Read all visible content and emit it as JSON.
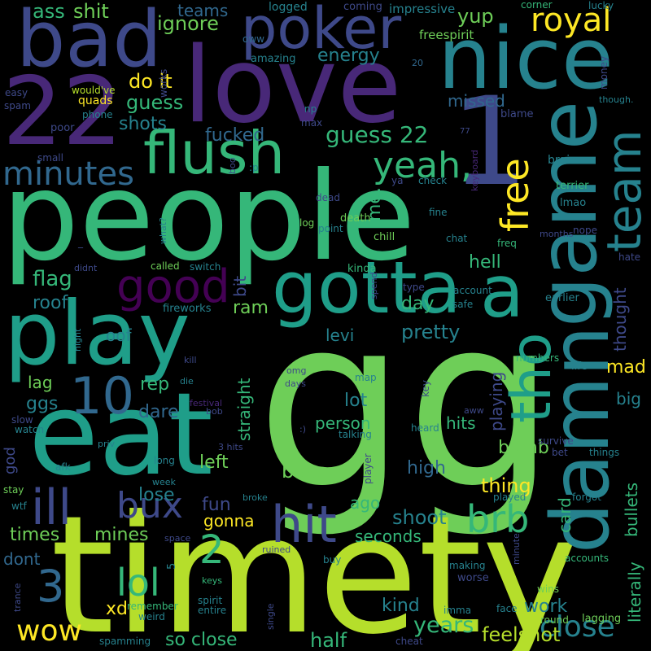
{
  "palette": {
    "background": "#000000",
    "yellow": "#fde725",
    "lime": "#b5de2b",
    "green": "#6ece58",
    "seagreen": "#35b779",
    "teal": "#1f9e89",
    "steel": "#26828e",
    "blue": "#31688e",
    "slate": "#3e4989",
    "indigo": "#482878",
    "purple": "#440154"
  },
  "words": [
    {
      "text": "gg",
      "c": "#6ece58"
    },
    {
      "text": "timety",
      "c": "#b5de2b"
    },
    {
      "text": "people",
      "c": "#35b779"
    },
    {
      "text": "love",
      "c": "#482878"
    },
    {
      "text": "eat",
      "c": "#1f9e89"
    },
    {
      "text": "play",
      "c": "#1f9e89"
    },
    {
      "text": "damn",
      "c": "#26828e"
    },
    {
      "text": "game",
      "c": "#26828e"
    },
    {
      "text": "22",
      "c": "#482878"
    },
    {
      "text": "bad",
      "c": "#3e4989"
    },
    {
      "text": "nice",
      "c": "#26828e"
    },
    {
      "text": "poker",
      "c": "#3e4989"
    },
    {
      "text": "1",
      "c": "#3e4989"
    },
    {
      "text": "gotta",
      "c": "#1f9e89"
    },
    {
      "text": "flush",
      "c": "#35b779"
    },
    {
      "text": "tho",
      "c": "#1f9e89"
    },
    {
      "text": "a",
      "c": "#1f9e89"
    },
    {
      "text": "good",
      "c": "#440154"
    },
    {
      "text": "hit",
      "c": "#3e4989"
    },
    {
      "text": "ill",
      "c": "#3e4989"
    },
    {
      "text": "team",
      "c": "#26828e"
    },
    {
      "text": "free",
      "c": "#fde725"
    },
    {
      "text": "10",
      "c": "#31688e"
    },
    {
      "text": "minutes",
      "c": "#31688e"
    },
    {
      "text": "royal",
      "c": "#fde725"
    },
    {
      "text": "yeah,",
      "c": "#35b779"
    },
    {
      "text": "brb",
      "c": "#35b779"
    },
    {
      "text": "close",
      "c": "#26828e"
    },
    {
      "text": "bux",
      "c": "#3e4989"
    },
    {
      "text": "3",
      "c": "#31688e"
    },
    {
      "text": "2",
      "c": "#35b779"
    },
    {
      "text": "lol",
      "c": "#35b779"
    },
    {
      "text": "wow",
      "c": "#fde725"
    },
    {
      "text": "years",
      "c": "#35b779"
    },
    {
      "text": "guess 22",
      "c": "#35b779"
    },
    {
      "text": "thought",
      "c": "#3e4989"
    },
    {
      "text": "ass",
      "c": "#35b779"
    },
    {
      "text": "shit",
      "c": "#6ece58"
    },
    {
      "text": "teams",
      "c": "#31688e"
    },
    {
      "text": "ignore",
      "c": "#6ece58"
    },
    {
      "text": "yup",
      "c": "#6ece58"
    },
    {
      "text": "energy",
      "c": "#26828e"
    },
    {
      "text": "do it",
      "c": "#fde725"
    },
    {
      "text": "guess",
      "c": "#35b779"
    },
    {
      "text": "missed",
      "c": "#31688e"
    },
    {
      "text": "shots",
      "c": "#26828e"
    },
    {
      "text": "fucked",
      "c": "#31688e"
    },
    {
      "text": "me.",
      "c": "#35b779"
    },
    {
      "text": "flag",
      "c": "#35b779"
    },
    {
      "text": "hell",
      "c": "#35b779"
    },
    {
      "text": "roof",
      "c": "#26828e"
    },
    {
      "text": "ram",
      "c": "#6ece58"
    },
    {
      "text": "day",
      "c": "#35b779"
    },
    {
      "text": "bit",
      "c": "#3e4989"
    },
    {
      "text": "pretty",
      "c": "#26828e"
    },
    {
      "text": "levi",
      "c": "#26828e"
    },
    {
      "text": "oof",
      "c": "#26828e"
    },
    {
      "text": "rep",
      "c": "#35b779"
    },
    {
      "text": "mad",
      "c": "#fde725"
    },
    {
      "text": "playing",
      "c": "#3e4989"
    },
    {
      "text": "lag",
      "c": "#6ece58"
    },
    {
      "text": "straight",
      "c": "#35b779"
    },
    {
      "text": "lot",
      "c": "#26828e"
    },
    {
      "text": "dare",
      "c": "#31688e"
    },
    {
      "text": "ggs",
      "c": "#26828e"
    },
    {
      "text": "person",
      "c": "#35b779"
    },
    {
      "text": "hits",
      "c": "#35b779"
    },
    {
      "text": "big",
      "c": "#26828e"
    },
    {
      "text": "left",
      "c": "#6ece58"
    },
    {
      "text": "base",
      "c": "#6ece58"
    },
    {
      "text": "bomb",
      "c": "#6ece58"
    },
    {
      "text": "high",
      "c": "#31688e"
    },
    {
      "text": "thing",
      "c": "#fde725"
    },
    {
      "text": "lose",
      "c": "#26828e"
    },
    {
      "text": "fun",
      "c": "#3e4989"
    },
    {
      "text": "ago",
      "c": "#35b779"
    },
    {
      "text": "shoot",
      "c": "#26828e"
    },
    {
      "text": "card",
      "c": "#35b779"
    },
    {
      "text": "bullets",
      "c": "#35b779"
    },
    {
      "text": "literally",
      "c": "#35b779"
    },
    {
      "text": "gonna",
      "c": "#fde725"
    },
    {
      "text": "times",
      "c": "#6ece58"
    },
    {
      "text": "mines",
      "c": "#6ece58"
    },
    {
      "text": "seconds",
      "c": "#35b779"
    },
    {
      "text": "dont",
      "c": "#31688e"
    },
    {
      "text": "kind",
      "c": "#26828e"
    },
    {
      "text": "work",
      "c": "#26828e"
    },
    {
      "text": "xd",
      "c": "#fde725"
    },
    {
      "text": "so close",
      "c": "#35b779"
    },
    {
      "text": "half",
      "c": "#35b779"
    },
    {
      "text": "feelshot",
      "c": "#b5de2b"
    },
    {
      "text": "god",
      "c": "#3e4989"
    },
    {
      "text": "logged",
      "c": "#26828e"
    },
    {
      "text": "coming",
      "c": "#3e4989"
    },
    {
      "text": "impressive",
      "c": "#26828e"
    },
    {
      "text": "corner",
      "c": "#35b779"
    },
    {
      "text": "lucky",
      "c": "#26828e"
    },
    {
      "text": "oww",
      "c": "#31688e"
    },
    {
      "text": "freespirit",
      "c": "#6ece58"
    },
    {
      "text": "amazing",
      "c": "#26828e"
    },
    {
      "text": "20",
      "c": "#31688e"
    },
    {
      "text": "money",
      "c": "#3e4989"
    },
    {
      "text": "works",
      "c": "#3e4989"
    },
    {
      "text": "easy",
      "c": "#3e4989"
    },
    {
      "text": "would've",
      "c": "#b5de2b"
    },
    {
      "text": "quads",
      "c": "#fde725"
    },
    {
      "text": "spam",
      "c": "#3e4989"
    },
    {
      "text": "phone",
      "c": "#26828e"
    },
    {
      "text": "np",
      "c": "#26828e"
    },
    {
      "text": "though.",
      "c": "#26828e"
    },
    {
      "text": "poor",
      "c": "#3e4989"
    },
    {
      "text": "max",
      "c": "#3e4989"
    },
    {
      "text": "77",
      "c": "#3e4989"
    },
    {
      "text": "blame",
      "c": "#3e4989"
    },
    {
      "text": "small",
      "c": "#3e4989"
    },
    {
      "text": "boo",
      "c": "#3e4989"
    },
    {
      "text": ":p",
      "c": "#26828e"
    },
    {
      "text": "ya",
      "c": "#3e4989"
    },
    {
      "text": "check",
      "c": "#26828e"
    },
    {
      "text": "keyboard",
      "c": "#482878"
    },
    {
      "text": "brain",
      "c": "#26828e"
    },
    {
      "text": "terrier",
      "c": "#35b779"
    },
    {
      "text": "lmao",
      "c": "#26828e"
    },
    {
      "text": "dead",
      "c": "#3e4989"
    },
    {
      "text": "fine",
      "c": "#26828e"
    },
    {
      "text": "log",
      "c": "#6ece58"
    },
    {
      "text": "death",
      "c": "#6ece58"
    },
    {
      "text": "point",
      "c": "#26828e"
    },
    {
      "text": "chill",
      "c": "#6ece58"
    },
    {
      "text": "what?",
      "c": "#26828e"
    },
    {
      "text": "chat",
      "c": "#26828e"
    },
    {
      "text": "freq",
      "c": "#35b779"
    },
    {
      "text": "months",
      "c": "#3e4989"
    },
    {
      "text": "nope",
      "c": "#3e4989"
    },
    {
      "text": "didnt",
      "c": "#3e4989"
    },
    {
      "text": "called",
      "c": "#6ece58"
    },
    {
      "text": "switch",
      "c": "#26828e"
    },
    {
      "text": "kinda",
      "c": "#35b779"
    },
    {
      "text": "hate",
      "c": "#3e4989"
    },
    {
      "text": "spend",
      "c": "#3e4989"
    },
    {
      "text": "type",
      "c": "#3e4989"
    },
    {
      "text": "account",
      "c": "#26828e"
    },
    {
      "text": "safe",
      "c": "#26828e"
    },
    {
      "text": "earlier",
      "c": "#26828e"
    },
    {
      "text": "fireworks",
      "c": "#26828e"
    },
    {
      "text": "night",
      "c": "#26828e"
    },
    {
      "text": "kill",
      "c": "#3e4989"
    },
    {
      "text": "omg",
      "c": "#3e4989"
    },
    {
      "text": "numbers",
      "c": "#35b779"
    },
    {
      "text": "life",
      "c": "#26828e"
    },
    {
      "text": "days",
      "c": "#3e4989"
    },
    {
      "text": "map",
      "c": "#26828e"
    },
    {
      "text": "key",
      "c": "#3e4989"
    },
    {
      "text": "die",
      "c": "#26828e"
    },
    {
      "text": "festival",
      "c": "#482878"
    },
    {
      "text": "bob",
      "c": "#3e4989"
    },
    {
      "text": "aww",
      "c": "#3e4989"
    },
    {
      "text": "slow",
      "c": "#3e4989"
    },
    {
      "text": "watch",
      "c": "#26828e"
    },
    {
      "text": ":)",
      "c": "#3e4989"
    },
    {
      "text": "talking",
      "c": "#26828e"
    },
    {
      "text": "heard",
      "c": "#26828e"
    },
    {
      "text": "3 hits",
      "c": "#3e4989"
    },
    {
      "text": "survive",
      "c": "#3e4989"
    },
    {
      "text": "priv",
      "c": "#26828e"
    },
    {
      "text": "bet",
      "c": "#3e4989"
    },
    {
      "text": "things",
      "c": "#26828e"
    },
    {
      "text": "afk",
      "c": "#26828e"
    },
    {
      "text": "long",
      "c": "#26828e"
    },
    {
      "text": "player",
      "c": "#3e4989"
    },
    {
      "text": "stay",
      "c": "#6ece58"
    },
    {
      "text": "week",
      "c": "#26828e"
    },
    {
      "text": "played",
      "c": "#26828e"
    },
    {
      "text": "forgot",
      "c": "#26828e"
    },
    {
      "text": "wtf",
      "c": "#26828e"
    },
    {
      "text": "broke",
      "c": "#26828e"
    },
    {
      "text": "space",
      "c": "#3e4989"
    },
    {
      "text": "minute",
      "c": "#3e4989"
    },
    {
      "text": "ruined",
      "c": "#3e4989"
    },
    {
      "text": "5",
      "c": "#26828e"
    },
    {
      "text": "buy",
      "c": "#26828e"
    },
    {
      "text": "accounts",
      "c": "#35b779"
    },
    {
      "text": "making",
      "c": "#26828e"
    },
    {
      "text": "worse",
      "c": "#3e4989"
    },
    {
      "text": "keys",
      "c": "#35b779"
    },
    {
      "text": "trance",
      "c": "#3e4989"
    },
    {
      "text": "spirit",
      "c": "#26828e"
    },
    {
      "text": "wins",
      "c": "#6ece58"
    },
    {
      "text": "remember",
      "c": "#35b779"
    },
    {
      "text": "entire",
      "c": "#26828e"
    },
    {
      "text": "imma",
      "c": "#26828e"
    },
    {
      "text": "face",
      "c": "#26828e"
    },
    {
      "text": "weird",
      "c": "#26828e"
    },
    {
      "text": "single",
      "c": "#3e4989"
    },
    {
      "text": "round",
      "c": "#6ece58"
    },
    {
      "text": "lagging",
      "c": "#6ece58"
    },
    {
      "text": "spamming",
      "c": "#26828e"
    },
    {
      "text": "cheat",
      "c": "#3e4989"
    },
    {
      "text": "_",
      "c": "#3e4989"
    }
  ]
}
